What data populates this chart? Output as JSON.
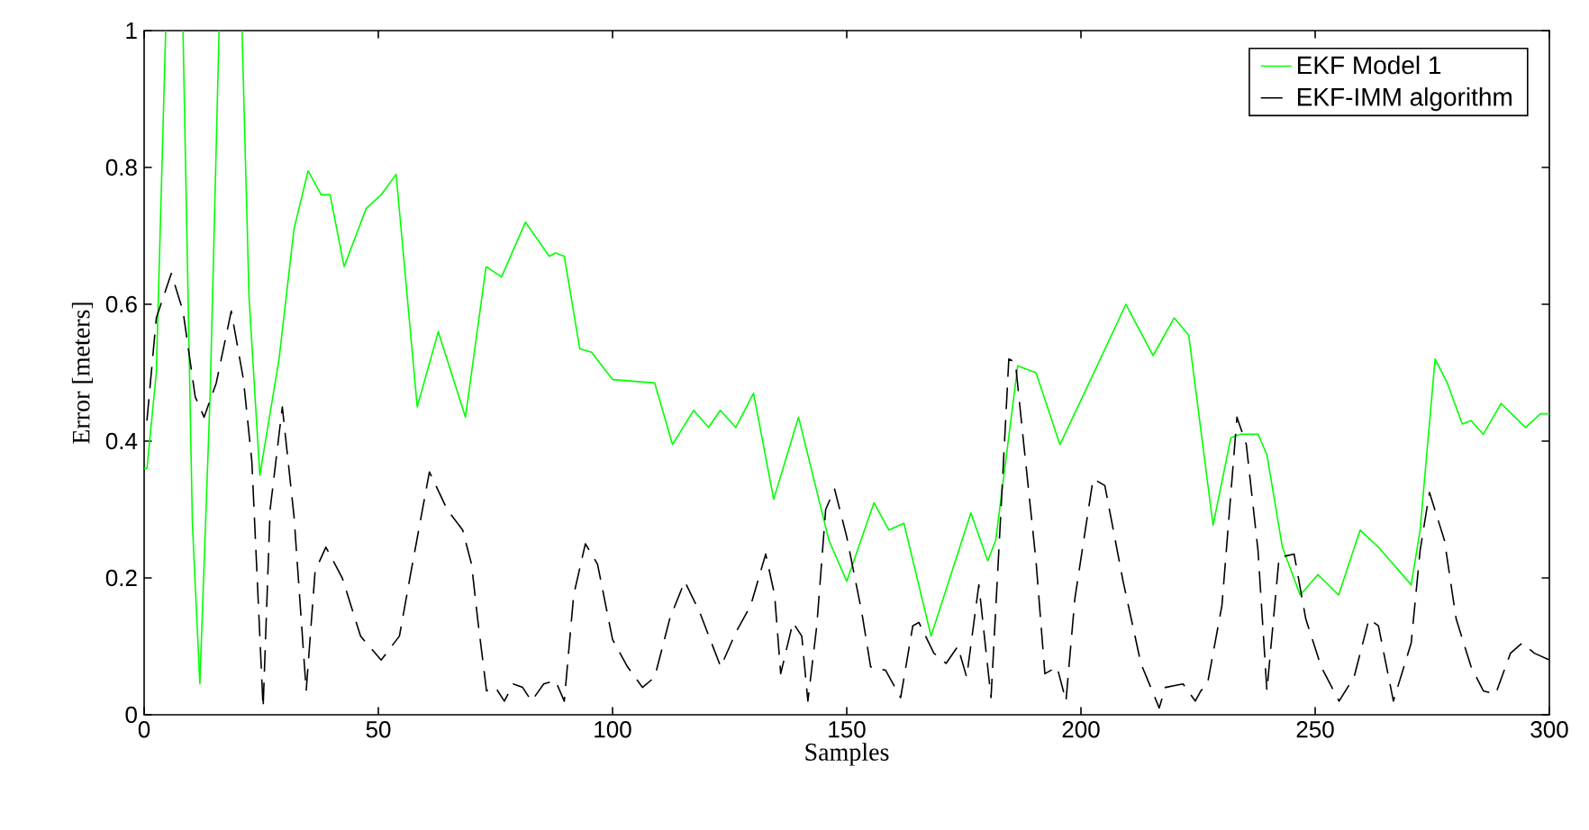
{
  "chart_data": {
    "type": "line",
    "xlabel": "Samples",
    "ylabel": "Error [meters]",
    "xlim": [
      0,
      300
    ],
    "ylim": [
      0,
      1
    ],
    "xticks": [
      0,
      50,
      100,
      150,
      200,
      250,
      300
    ],
    "yticks": [
      0,
      0.2,
      0.4,
      0.6,
      0.8,
      1
    ],
    "legend": "top right",
    "series": [
      {
        "name": "EKF Model 1",
        "color": "#00ff00",
        "line_style": "solid",
        "x": [
          0,
          0.6,
          2.6,
          4.6,
          6.5,
          8.3,
          10.3,
          11.9,
          14.1,
          16,
          18.5,
          20.9,
          22.4,
          24.7,
          28.8,
          32,
          35,
          37.8,
          39.7,
          42.7,
          47.4,
          50.6,
          53.8,
          58.3,
          62.8,
          68.6,
          73,
          76.3,
          81.4,
          86.5,
          87.8,
          89.7,
          93,
          95.5,
          100,
          109,
          112.8,
          117.3,
          120.5,
          123,
          126.3,
          130.1,
          134.4,
          139.7,
          146.2,
          150,
          155.8,
          159,
          162.2,
          168,
          176.5,
          180.1,
          181.8,
          186.5,
          190.4,
          195.5,
          200.7,
          209.6,
          215.4,
          219.9,
          223,
          228.2,
          232,
          234,
          237.8,
          239.7,
          243,
          246.8,
          250.6,
          255,
          259.6,
          263.5,
          270.5,
          272.4,
          275.6,
          278.2,
          281.4,
          283.3,
          285.9,
          289.7,
          294.9,
          298.1,
          300
        ],
        "values": [
          0.36,
          0.36,
          0.5,
          1,
          null,
          1,
          0.28,
          0.045,
          0.47,
          1,
          null,
          1,
          0.61,
          0.35,
          0.52,
          0.71,
          0.795,
          0.76,
          0.76,
          0.655,
          0.74,
          0.76,
          0.79,
          0.45,
          0.56,
          0.435,
          0.655,
          0.64,
          0.72,
          0.67,
          0.675,
          0.67,
          0.535,
          0.53,
          0.49,
          0.485,
          0.395,
          0.445,
          0.42,
          0.445,
          0.42,
          0.47,
          0.315,
          0.435,
          0.255,
          0.195,
          0.31,
          0.27,
          0.28,
          0.115,
          0.295,
          0.225,
          0.255,
          0.51,
          0.5,
          0.395,
          0.47,
          0.6,
          0.525,
          0.58,
          0.555,
          0.277,
          0.405,
          0.41,
          0.41,
          0.38,
          0.245,
          0.175,
          0.205,
          0.175,
          0.27,
          0.245,
          0.19,
          0.27,
          0.52,
          0.485,
          0.425,
          0.43,
          0.41,
          0.455,
          0.42,
          0.44,
          0.44
        ]
      },
      {
        "name": "EKF-IMM algorithm",
        "color": "#000000",
        "line_style": "dashed",
        "x": [
          0.6,
          2.6,
          5.8,
          8.3,
          10.9,
          12.8,
          15.4,
          18.6,
          21.2,
          23,
          25.4,
          26.9,
          29.5,
          32,
          34.6,
          36.5,
          38.8,
          42.3,
          46.2,
          50.6,
          54.5,
          57,
          60.9,
          64.7,
          68,
          69.9,
          71.2,
          73.1,
          75,
          76.9,
          78.8,
          80.8,
          82.7,
          85.3,
          87.8,
          89.7,
          91.7,
          94.2,
          96.8,
          100,
          103.2,
          106.4,
          109,
          112.2,
          115.4,
          118.6,
          123.1,
          126.3,
          129.5,
          132.7,
          134.6,
          135.9,
          138.5,
          140.4,
          141.7,
          143.6,
          145.5,
          147.4,
          150,
          153.2,
          155.1,
          158.3,
          161.5,
          164.1,
          165.4,
          168.6,
          171.2,
          173.7,
          175.6,
          178.2,
          180.8,
          182.7,
          184.6,
          186,
          187.8,
          190.4,
          192.3,
          194.9,
          196.8,
          198.7,
          202.6,
          205.1,
          209,
          212.8,
          216.7,
          218,
          221.8,
          224.4,
          225.6,
          227,
          230.1,
          233.3,
          235.3,
          237.8,
          239.7,
          242.3,
          245.5,
          248,
          251.3,
          255.1,
          258.3,
          261.5,
          263.5,
          266.7,
          270.5,
          272.4,
          274.4,
          277.6,
          280.1,
          283.3,
          285.9,
          288.5,
          291.7,
          294.2,
          296.8,
          300
        ],
        "values": [
          0.43,
          0.58,
          0.645,
          0.59,
          0.465,
          0.435,
          0.485,
          0.59,
          0.49,
          0.37,
          0.01,
          0.3,
          0.45,
          0.29,
          0.035,
          0.21,
          0.245,
          0.2,
          0.115,
          0.08,
          0.115,
          0.21,
          0.355,
          0.3,
          0.27,
          0.22,
          0.14,
          0.035,
          0.04,
          0.02,
          0.045,
          0.04,
          0.02,
          0.045,
          0.05,
          0.02,
          0.175,
          0.25,
          0.22,
          0.11,
          0.07,
          0.04,
          0.055,
          0.14,
          0.195,
          0.15,
          0.07,
          0.12,
          0.16,
          0.235,
          0.175,
          0.06,
          0.135,
          0.115,
          0.02,
          0.13,
          0.3,
          0.33,
          0.26,
          0.15,
          0.07,
          0.065,
          0.025,
          0.13,
          0.135,
          0.09,
          0.075,
          0.1,
          0.055,
          0.19,
          0.025,
          0.27,
          0.52,
          0.515,
          0.395,
          0.225,
          0.06,
          0.07,
          0.02,
          0.17,
          0.345,
          0.335,
          0.195,
          0.075,
          0.01,
          0.04,
          0.045,
          0.02,
          0.035,
          0.045,
          0.16,
          0.435,
          0.395,
          0.24,
          0.035,
          0.23,
          0.235,
          0.14,
          0.07,
          0.02,
          0.055,
          0.14,
          0.13,
          0.02,
          0.105,
          0.24,
          0.325,
          0.255,
          0.14,
          0.07,
          0.035,
          0.03,
          0.09,
          0.105,
          0.09,
          0.08
        ]
      }
    ]
  }
}
